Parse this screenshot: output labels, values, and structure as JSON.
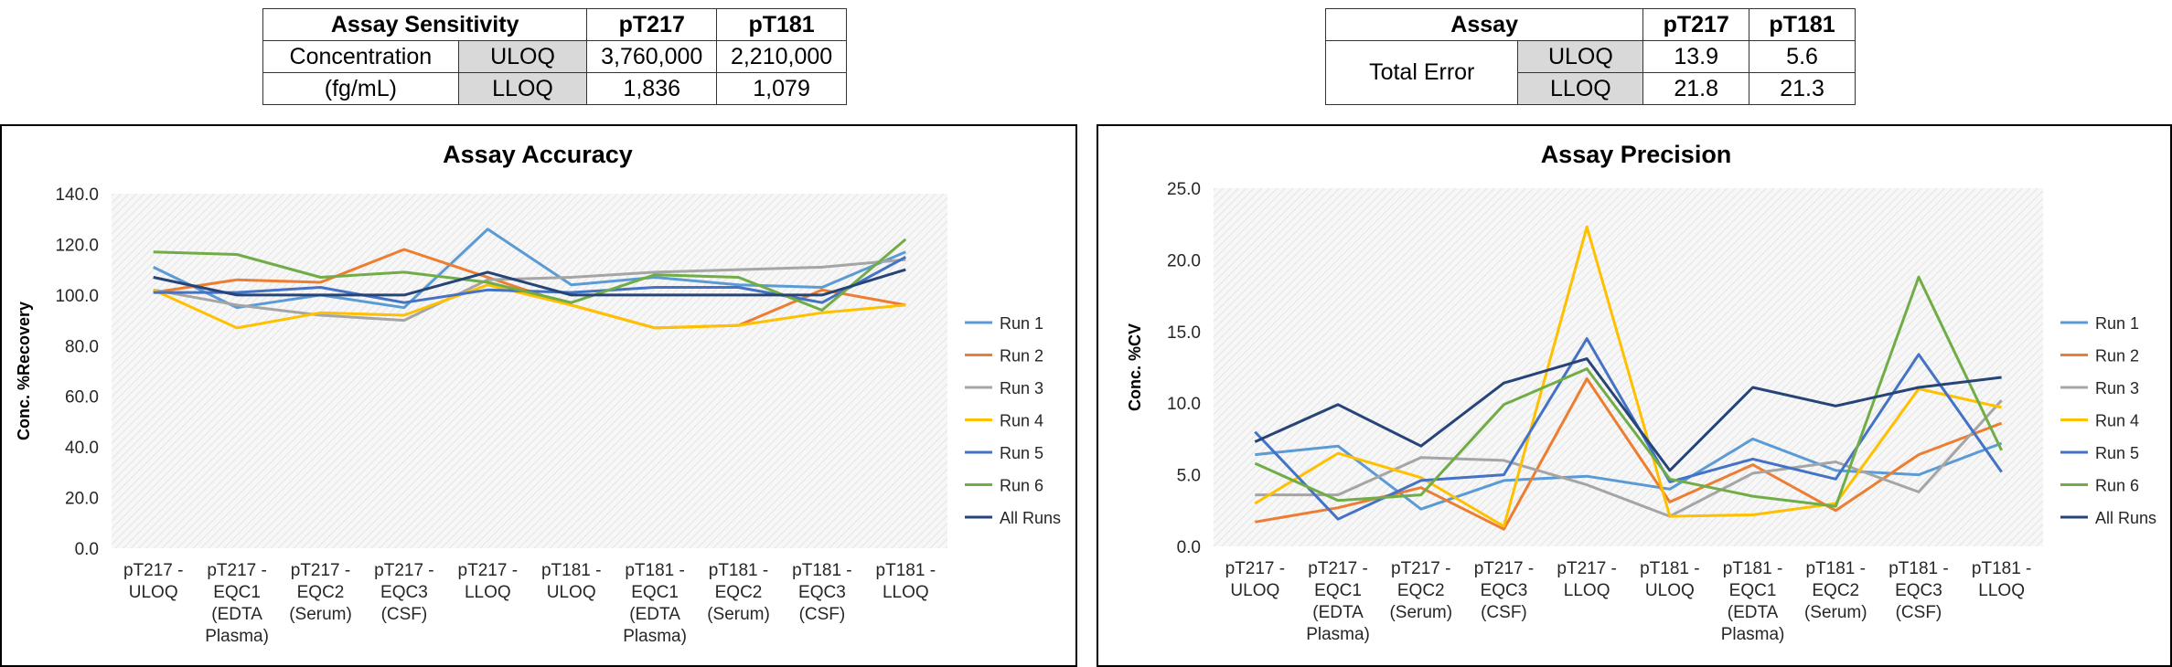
{
  "tables": {
    "sensitivity": {
      "title": "Assay Sensitivity",
      "col1": "pT217",
      "col2": "pT181",
      "row_label_line1": "Concentration",
      "row_label_line2": "(fg/mL)",
      "rows": [
        {
          "label": "ULOQ",
          "v1": "3,760,000",
          "v2": "2,210,000"
        },
        {
          "label": "LLOQ",
          "v1": "1,836",
          "v2": "1,079"
        }
      ]
    },
    "total_error": {
      "title": "Assay",
      "col1": "pT217",
      "col2": "pT181",
      "row_label": "Total Error",
      "rows": [
        {
          "label": "ULOQ",
          "v1": "13.9",
          "v2": "5.6"
        },
        {
          "label": "LLOQ",
          "v1": "21.8",
          "v2": "21.3"
        }
      ]
    }
  },
  "chart_data": [
    {
      "type": "line",
      "title": "Assay Accuracy",
      "ylabel": "Conc. %Recovery",
      "xlabel": "",
      "ylim": [
        0,
        140
      ],
      "yticks": [
        "0.0",
        "20.0",
        "40.0",
        "60.0",
        "80.0",
        "100.0",
        "120.0",
        "140.0"
      ],
      "grid": "hatched plot background",
      "legend": "right",
      "categories": [
        [
          "pT217 -",
          "ULOQ"
        ],
        [
          "pT217 -",
          "EQC1",
          "(EDTA",
          "Plasma)"
        ],
        [
          "pT217 -",
          "EQC2",
          "(Serum)"
        ],
        [
          "pT217 -",
          "EQC3",
          "(CSF)"
        ],
        [
          "pT217 -",
          "LLOQ"
        ],
        [
          "pT181 -",
          "ULOQ"
        ],
        [
          "pT181 -",
          "EQC1",
          "(EDTA",
          "Plasma)"
        ],
        [
          "pT181 -",
          "EQC2",
          "(Serum)"
        ],
        [
          "pT181 -",
          "EQC3",
          "(CSF)"
        ],
        [
          "pT181 -",
          "LLOQ"
        ]
      ],
      "series": [
        {
          "name": "Run 1",
          "color": "#5b9bd5",
          "values": [
            111,
            95,
            100,
            95,
            126,
            104,
            107,
            104,
            103,
            117
          ]
        },
        {
          "name": "Run 2",
          "color": "#ed7d31",
          "values": [
            101,
            106,
            105,
            118,
            107,
            96,
            87,
            88,
            102,
            96
          ]
        },
        {
          "name": "Run 3",
          "color": "#a5a5a5",
          "values": [
            102,
            96,
            92,
            90,
            106,
            107,
            109,
            110,
            111,
            114
          ]
        },
        {
          "name": "Run 4",
          "color": "#ffc000",
          "values": [
            102,
            87,
            93,
            92,
            104,
            96,
            87,
            88,
            93,
            96
          ]
        },
        {
          "name": "Run 5",
          "color": "#4472c4",
          "values": [
            101,
            101,
            103,
            97,
            102,
            101,
            103,
            103,
            97,
            115
          ]
        },
        {
          "name": "Run 6",
          "color": "#70ad47",
          "values": [
            117,
            116,
            107,
            109,
            105,
            97,
            108,
            107,
            94,
            122
          ]
        },
        {
          "name": "All Runs",
          "color": "#264478",
          "values": [
            107,
            100,
            100,
            100,
            109,
            100,
            100,
            100,
            100,
            110
          ]
        }
      ]
    },
    {
      "type": "line",
      "title": "Assay Precision",
      "ylabel": "Conc. %CV",
      "xlabel": "",
      "ylim": [
        0,
        25
      ],
      "yticks": [
        "0.0",
        "5.0",
        "10.0",
        "15.0",
        "20.0",
        "25.0"
      ],
      "grid": "hatched plot background",
      "legend": "right",
      "categories": [
        [
          "pT217 -",
          "ULOQ"
        ],
        [
          "pT217 -",
          "EQC1",
          "(EDTA",
          "Plasma)"
        ],
        [
          "pT217 -",
          "EQC2",
          "(Serum)"
        ],
        [
          "pT217 -",
          "EQC3",
          "(CSF)"
        ],
        [
          "pT217 -",
          "LLOQ"
        ],
        [
          "pT181 -",
          "ULOQ"
        ],
        [
          "pT181 -",
          "EQC1",
          "(EDTA",
          "Plasma)"
        ],
        [
          "pT181 -",
          "EQC2",
          "(Serum)"
        ],
        [
          "pT181 -",
          "EQC3",
          "(CSF)"
        ],
        [
          "pT181 -",
          "LLOQ"
        ]
      ],
      "series": [
        {
          "name": "Run 1",
          "color": "#5b9bd5",
          "values": [
            6.4,
            7.0,
            2.6,
            4.6,
            4.9,
            4.0,
            7.5,
            5.3,
            5.0,
            7.2
          ]
        },
        {
          "name": "Run 2",
          "color": "#ed7d31",
          "values": [
            1.7,
            2.7,
            4.1,
            1.2,
            11.7,
            3.1,
            5.7,
            2.5,
            6.4,
            8.6
          ]
        },
        {
          "name": "Run 3",
          "color": "#a5a5a5",
          "values": [
            3.6,
            3.6,
            6.2,
            6.0,
            4.3,
            2.1,
            5.1,
            5.9,
            3.8,
            10.2
          ]
        },
        {
          "name": "Run 4",
          "color": "#ffc000",
          "values": [
            3.0,
            6.5,
            4.8,
            1.4,
            22.3,
            2.1,
            2.2,
            3.0,
            11.0,
            9.7
          ]
        },
        {
          "name": "Run 5",
          "color": "#4472c4",
          "values": [
            8.0,
            1.9,
            4.6,
            5.0,
            14.5,
            4.5,
            6.1,
            4.7,
            13.4,
            5.2
          ]
        },
        {
          "name": "Run 6",
          "color": "#70ad47",
          "values": [
            5.8,
            3.2,
            3.6,
            9.9,
            12.4,
            4.7,
            3.5,
            2.8,
            18.8,
            6.7
          ]
        },
        {
          "name": "All Runs",
          "color": "#264478",
          "values": [
            7.3,
            9.9,
            7.0,
            11.4,
            13.1,
            5.3,
            11.1,
            9.8,
            11.1,
            11.8
          ]
        }
      ]
    }
  ]
}
